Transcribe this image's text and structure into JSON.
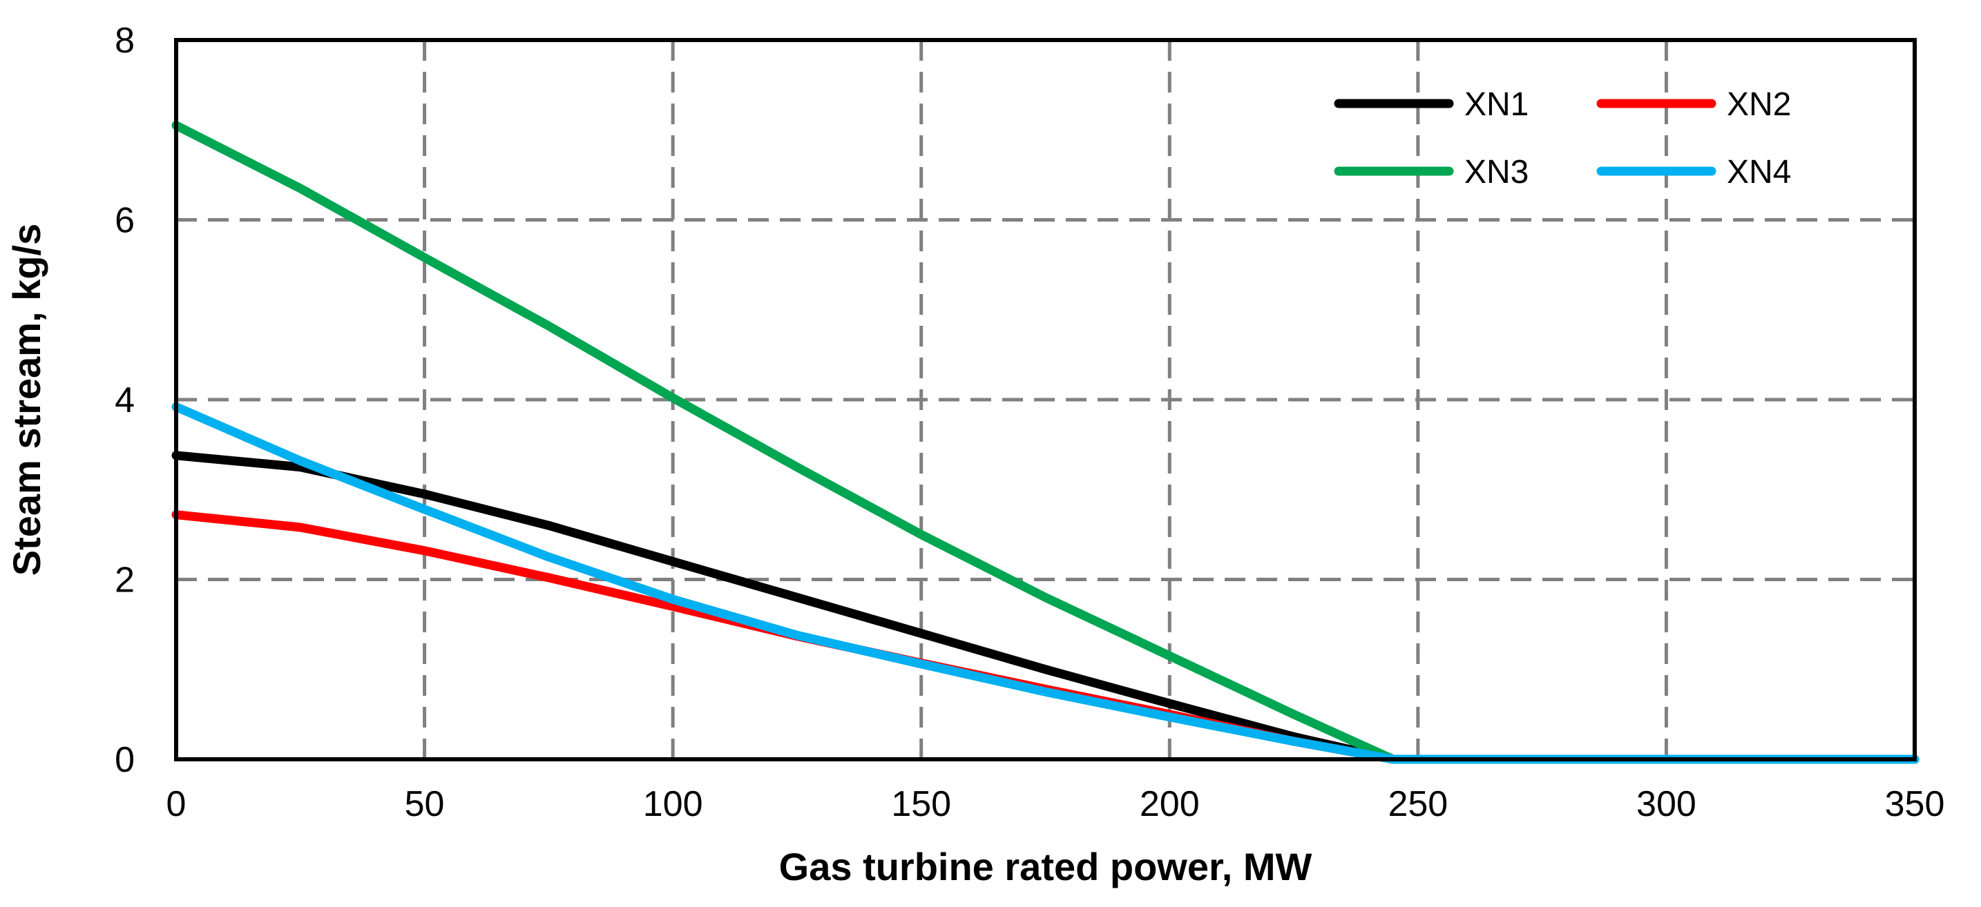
{
  "chart_data": {
    "type": "line",
    "title": "",
    "xlabel": "Gas turbine rated power, MW",
    "ylabel": "Steam stream, kg/s",
    "xlim": [
      0,
      350
    ],
    "ylim": [
      0,
      8
    ],
    "xticks": [
      0,
      50,
      100,
      150,
      200,
      250,
      300,
      350
    ],
    "yticks": [
      0,
      2,
      4,
      6,
      8
    ],
    "grid": true,
    "legend_position": "top-right",
    "series": [
      {
        "name": "XN1",
        "color": "#000000",
        "x": [
          0,
          25,
          50,
          75,
          100,
          125,
          150,
          175,
          200,
          225,
          245,
          250,
          300,
          350
        ],
        "y": [
          3.38,
          3.25,
          2.95,
          2.6,
          2.2,
          1.8,
          1.4,
          1.0,
          0.62,
          0.25,
          0.0,
          0.0,
          0.0,
          0.0
        ]
      },
      {
        "name": "XN2",
        "color": "#ff0000",
        "x": [
          0,
          25,
          50,
          75,
          100,
          125,
          150,
          175,
          200,
          225,
          245,
          250,
          300,
          350
        ],
        "y": [
          2.72,
          2.58,
          2.32,
          2.02,
          1.7,
          1.37,
          1.07,
          0.78,
          0.5,
          0.2,
          0.0,
          0.0,
          0.0,
          0.0
        ]
      },
      {
        "name": "XN3",
        "color": "#00a651",
        "x": [
          0,
          25,
          50,
          75,
          100,
          125,
          150,
          175,
          200,
          225,
          245,
          250,
          300,
          350
        ],
        "y": [
          7.05,
          6.35,
          5.58,
          4.82,
          4.02,
          3.25,
          2.5,
          1.8,
          1.15,
          0.5,
          0.0,
          0.0,
          0.0,
          0.0
        ]
      },
      {
        "name": "XN4",
        "color": "#00b0f0",
        "x": [
          0,
          25,
          50,
          75,
          100,
          125,
          150,
          175,
          200,
          225,
          245,
          250,
          300,
          350
        ],
        "y": [
          3.92,
          3.32,
          2.78,
          2.25,
          1.78,
          1.38,
          1.06,
          0.75,
          0.47,
          0.2,
          0.0,
          0.0,
          0.0,
          0.0
        ]
      }
    ]
  }
}
